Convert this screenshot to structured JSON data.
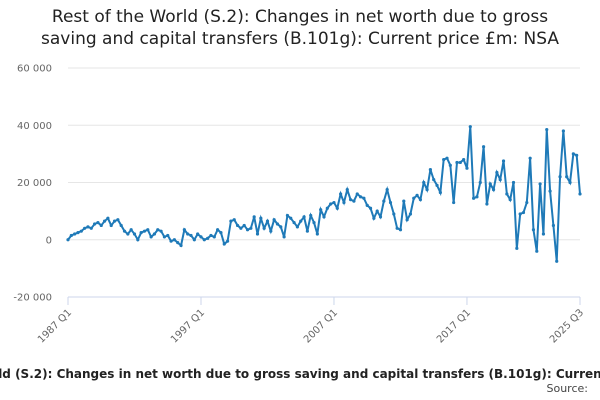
{
  "chart_data": {
    "type": "line",
    "title": "Rest of the World (S.2): Changes in net worth due to gross saving and capital transfers (B.101g): Current price £m: NSA",
    "source": "Source:",
    "categories": [
      "1987 Q1",
      null,
      null,
      null,
      null,
      null,
      null,
      null,
      null,
      null,
      null,
      null,
      null,
      null,
      null,
      null,
      null,
      null,
      null,
      null,
      null,
      null,
      null,
      null,
      null,
      null,
      null,
      null,
      null,
      null,
      null,
      null,
      null,
      null,
      null,
      null,
      null,
      null,
      null,
      null,
      "1997 Q1",
      null,
      null,
      null,
      null,
      null,
      null,
      null,
      null,
      null,
      null,
      null,
      null,
      null,
      null,
      null,
      null,
      null,
      null,
      null,
      null,
      null,
      null,
      null,
      null,
      null,
      null,
      null,
      null,
      null,
      null,
      null,
      null,
      null,
      null,
      null,
      null,
      null,
      null,
      null,
      "2007 Q1",
      null,
      null,
      null,
      null,
      null,
      null,
      null,
      null,
      null,
      null,
      null,
      null,
      null,
      null,
      null,
      null,
      null,
      null,
      null,
      null,
      null,
      null,
      null,
      null,
      null,
      null,
      null,
      null,
      null,
      null,
      null,
      null,
      null,
      null,
      null,
      null,
      null,
      null,
      null,
      "2017 Q1",
      null,
      null,
      null,
      null,
      null,
      null,
      null,
      null,
      null,
      null,
      null,
      null,
      null,
      null,
      null,
      null,
      null,
      null,
      null,
      null,
      null,
      null,
      null,
      null,
      null,
      null,
      null,
      null,
      null,
      null,
      null,
      null,
      null,
      "2025 Q3"
    ],
    "series": [
      {
        "name": "Rest of the World (S.2)",
        "color": "#1f7ab8",
        "values": [
          0,
          1500,
          2000,
          2500,
          3000,
          4000,
          4500,
          4000,
          5500,
          6000,
          5000,
          6500,
          7500,
          5000,
          6500,
          7000,
          5000,
          3000,
          2000,
          3500,
          2000,
          0,
          2500,
          3000,
          3500,
          1000,
          2000,
          3500,
          3000,
          1000,
          1500,
          -500,
          0,
          -1000,
          -2000,
          3500,
          2000,
          1500,
          0,
          2000,
          1000,
          0,
          500,
          1500,
          1000,
          3500,
          2500,
          -1500,
          -500,
          6500,
          7000,
          5000,
          4000,
          5000,
          3500,
          4000,
          8000,
          2000,
          7500,
          4000,
          6500,
          3000,
          7000,
          5500,
          4500,
          1000,
          8500,
          7500,
          6000,
          4500,
          6500,
          8000,
          3000,
          8500,
          6000,
          2000,
          10500,
          8000,
          11000,
          12500,
          13000,
          11000,
          16000,
          13000,
          17500,
          14000,
          13500,
          16000,
          15000,
          14500,
          12000,
          11000,
          7500,
          10000,
          8000,
          13500,
          17500,
          13000,
          9000,
          4000,
          3500,
          13500,
          7000,
          9000,
          14500,
          15500,
          14000,
          20000,
          17500,
          24500,
          21000,
          19000,
          16500,
          28000,
          28500,
          26000,
          13000,
          27000,
          27000,
          28000,
          25000,
          39500,
          14500,
          15000,
          20000,
          32500,
          12500,
          19500,
          17500,
          23500,
          21000,
          27500,
          16000,
          14000,
          20000,
          -3000,
          9000,
          9500,
          13000,
          28500,
          3500,
          -4000,
          19500,
          2000,
          38500,
          17000,
          5000,
          -7500,
          22000,
          38000,
          22000,
          20000,
          30000,
          29500,
          16000
        ]
      }
    ],
    "ylim": [
      -20000,
      60000
    ],
    "yticks": [
      {
        "value": -20000,
        "label": "-20 000"
      },
      {
        "value": 0,
        "label": "0"
      },
      {
        "value": 20000,
        "label": "20 000"
      },
      {
        "value": 40000,
        "label": "40 000"
      },
      {
        "value": 60000,
        "label": "60 000"
      }
    ],
    "grid": true
  }
}
